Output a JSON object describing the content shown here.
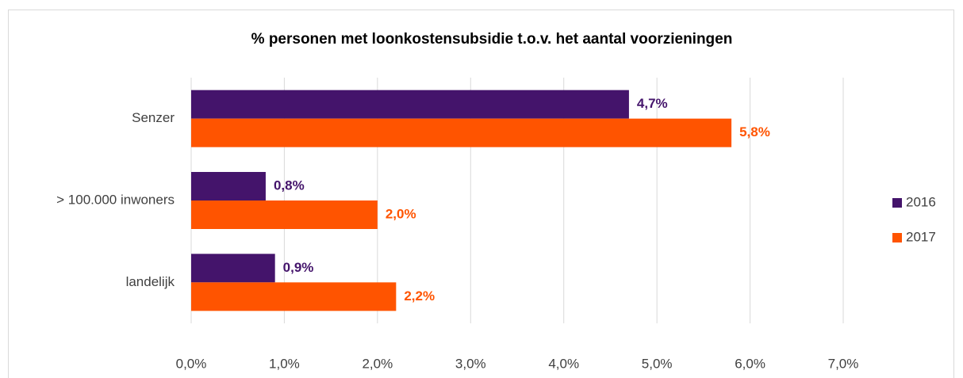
{
  "chart_data": {
    "type": "bar",
    "orientation": "horizontal",
    "title": "% personen met loonkostensubsidie t.o.v. het aantal voorzieningen",
    "categories": [
      "Senzer",
      "> 100.000 inwoners",
      "landelijk"
    ],
    "series": [
      {
        "name": "2016",
        "color": "#44146b",
        "values": [
          4.7,
          0.8,
          0.9
        ],
        "value_labels": [
          "4,7%",
          "0,8%",
          "0,9%"
        ]
      },
      {
        "name": "2017",
        "color": "#ff5400",
        "values": [
          5.8,
          2.0,
          2.2
        ],
        "value_labels": [
          "5,8%",
          "2,0%",
          "2,2%"
        ]
      }
    ],
    "xlim": [
      0,
      7
    ],
    "xticks": [
      {
        "value": 0,
        "label": "0,0%"
      },
      {
        "value": 1,
        "label": "1,0%"
      },
      {
        "value": 2,
        "label": "2,0%"
      },
      {
        "value": 3,
        "label": "3,0%"
      },
      {
        "value": 4,
        "label": "4,0%"
      },
      {
        "value": 5,
        "label": "5,0%"
      },
      {
        "value": 6,
        "label": "6,0%"
      },
      {
        "value": 7,
        "label": "7,0%"
      }
    ],
    "grid": true,
    "legend": "right"
  }
}
